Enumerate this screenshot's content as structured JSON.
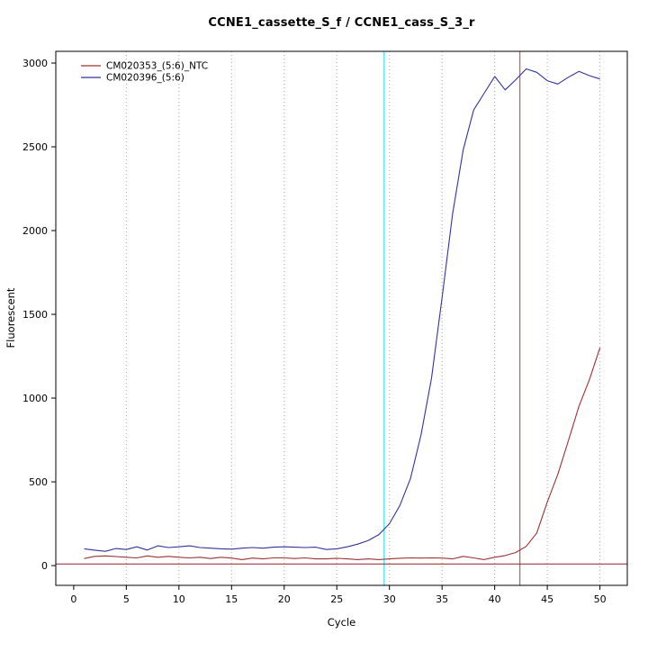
{
  "chart_data": {
    "type": "line",
    "title": "CCNE1_cassette_S_f / CCNE1_cass_S_3_r",
    "xlabel": "Cycle",
    "ylabel": "Fluorescent",
    "xlim": [
      -1.7,
      52.6
    ],
    "ylim": [
      -118,
      3070
    ],
    "xticks": [
      0,
      5,
      10,
      15,
      20,
      25,
      30,
      35,
      40,
      45,
      50
    ],
    "yticks": [
      0,
      500,
      1000,
      1500,
      2000,
      2500,
      3000
    ],
    "grid_x": [
      5,
      10,
      15,
      20,
      25,
      30,
      35,
      40,
      45,
      50
    ],
    "grid_style": "dotted",
    "legend_position": "top-left",
    "x": [
      1,
      2,
      3,
      4,
      5,
      6,
      7,
      8,
      9,
      10,
      11,
      12,
      13,
      14,
      15,
      16,
      17,
      18,
      19,
      20,
      21,
      22,
      23,
      24,
      25,
      26,
      27,
      28,
      29,
      30,
      31,
      32,
      33,
      34,
      35,
      36,
      37,
      38,
      39,
      40,
      41,
      42,
      43,
      44,
      45,
      46,
      47,
      48,
      49,
      50
    ],
    "series": [
      {
        "name": "CM020353_(5:6)_NTC",
        "color": "#993333",
        "values": [
          42,
          55,
          58,
          54,
          50,
          46,
          58,
          50,
          55,
          50,
          46,
          50,
          42,
          50,
          45,
          36,
          45,
          40,
          46,
          46,
          42,
          46,
          40,
          40,
          44,
          40,
          36,
          40,
          36,
          40,
          44,
          46,
          45,
          46,
          45,
          40,
          55,
          46,
          36,
          50,
          60,
          78,
          115,
          195,
          380,
          545,
          745,
          950,
          1110,
          1300
        ]
      },
      {
        "name": "CM020396_(5:6)",
        "color": "#333399",
        "values": [
          100,
          92,
          85,
          102,
          96,
          112,
          93,
          118,
          108,
          112,
          118,
          108,
          104,
          100,
          98,
          104,
          108,
          104,
          110,
          112,
          110,
          108,
          110,
          96,
          100,
          112,
          128,
          150,
          185,
          250,
          360,
          520,
          780,
          1120,
          1600,
          2100,
          2480,
          2720,
          2820,
          2920,
          2840,
          2900,
          2965,
          2945,
          2895,
          2875,
          2915,
          2950,
          2925,
          2905
        ]
      }
    ],
    "vlines": [
      {
        "x": 29.5,
        "color": "#00e0ee",
        "label": "cyan-threshold-cycle"
      },
      {
        "x": 42.4,
        "color": "#b24040",
        "label": "red-threshold-cycle"
      }
    ],
    "hlines": [
      {
        "y": 10,
        "color": "#8b2222",
        "label": "fluorescence-threshold"
      }
    ],
    "colors": {
      "grid": "#aaaaaa",
      "axis": "#000000",
      "background": "#ffffff"
    }
  }
}
